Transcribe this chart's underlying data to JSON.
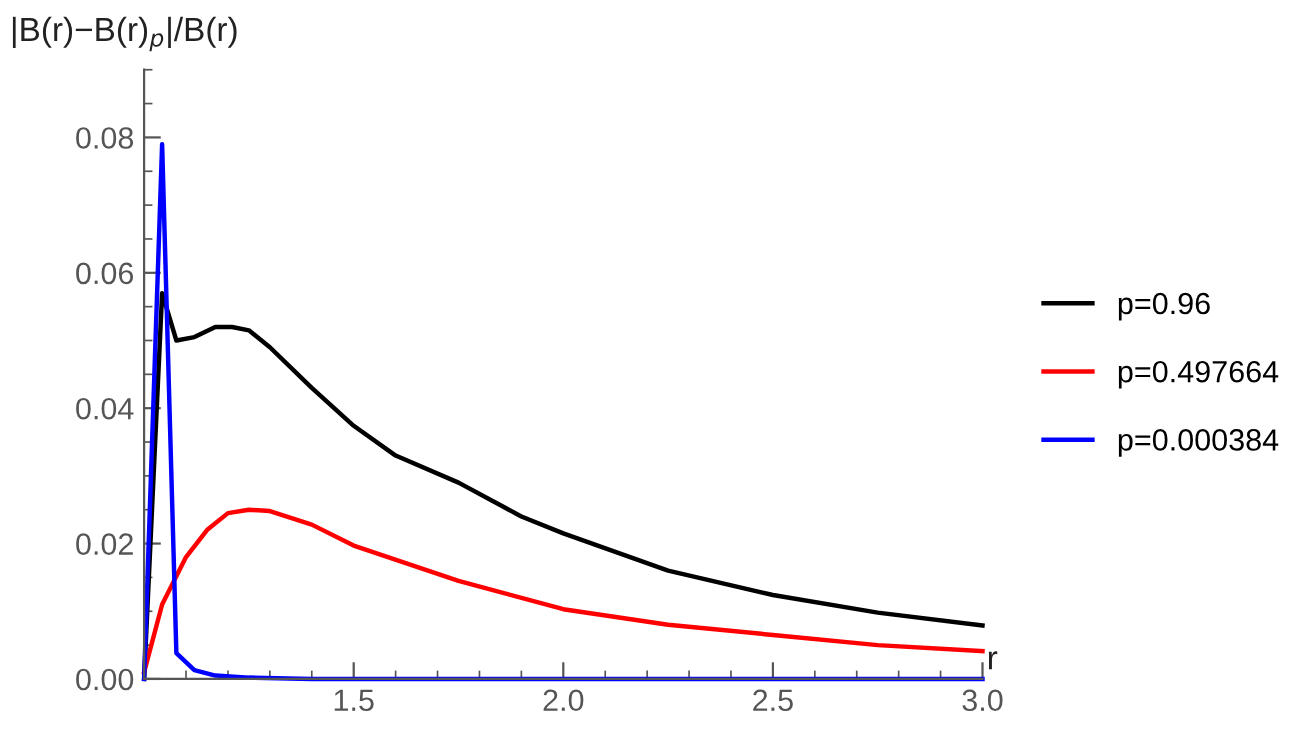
{
  "chart_data": {
    "type": "line",
    "ylabel": "|B(r)−B(r)$_{p}$|/B(r)",
    "xlabel": "r",
    "xlim": [
      1.0,
      3.0
    ],
    "ylim": [
      0,
      0.09
    ],
    "xticks": [
      {
        "value": 1.5,
        "label": "1.5"
      },
      {
        "value": 2,
        "label": "2.0"
      },
      {
        "value": 2.5,
        "label": "2.5"
      },
      {
        "value": 3,
        "label": "3.0"
      }
    ],
    "yticks": [
      {
        "value": 0,
        "label": "0.00"
      },
      {
        "value": 0.02,
        "label": "0.02"
      },
      {
        "value": 0.04,
        "label": "0.04"
      },
      {
        "value": 0.06,
        "label": "0.06"
      },
      {
        "value": 0.08,
        "label": "0.08"
      }
    ],
    "legend": "right",
    "grid": false,
    "marker": "none",
    "line_style": "solid",
    "series": [
      {
        "name": "p=0.96",
        "color": "#000000",
        "x": [
          1.0,
          1.043,
          1.077,
          1.12,
          1.17,
          1.21,
          1.25,
          1.3,
          1.4,
          1.5,
          1.6,
          1.75,
          1.9,
          2.0,
          2.25,
          2.5,
          2.75,
          3.0
        ],
        "values": [
          0,
          0.057,
          0.05,
          0.0505,
          0.052,
          0.052,
          0.0515,
          0.049,
          0.043,
          0.0374,
          0.033,
          0.029,
          0.024,
          0.0215,
          0.016,
          0.0124,
          0.0098,
          0.0079
        ]
      },
      {
        "name": "p=0.497664",
        "color": "#ff0000",
        "x": [
          1.0,
          1.043,
          1.1,
          1.15,
          1.2,
          1.25,
          1.3,
          1.4,
          1.5,
          1.75,
          2.0,
          2.25,
          2.5,
          2.75,
          3.0
        ],
        "values": [
          0.001,
          0.011,
          0.018,
          0.022,
          0.0245,
          0.025,
          0.0248,
          0.0228,
          0.0197,
          0.0145,
          0.0103,
          0.008,
          0.0065,
          0.005,
          0.0041
        ]
      },
      {
        "name": "p=0.000384",
        "color": "#0000ff",
        "x": [
          1.0,
          1.043,
          1.077,
          1.12,
          1.17,
          1.25,
          1.4,
          2.0,
          3.0
        ],
        "values": [
          0,
          0.079,
          0.0038,
          0.0013,
          0.0005,
          0.0002,
          0,
          0,
          0
        ]
      }
    ]
  }
}
